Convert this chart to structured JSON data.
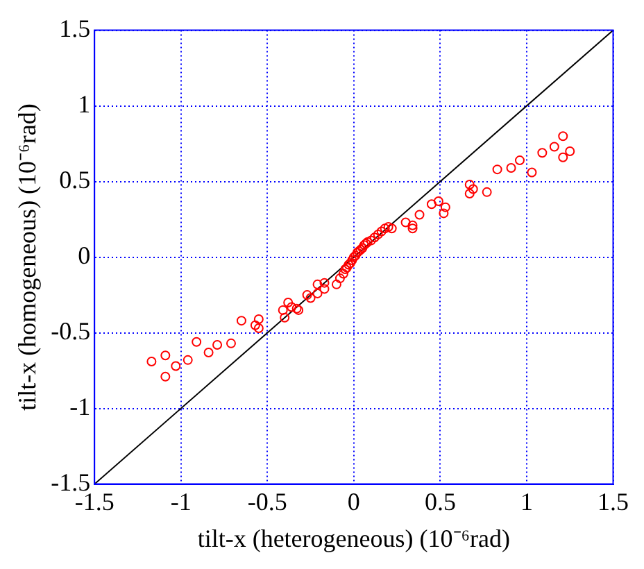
{
  "chart_data": {
    "type": "scatter",
    "xlabel": "tilt-x (heterogeneous) (10⁻⁶rad)",
    "ylabel": "tilt-x (homogeneous) (10⁻⁶rad)",
    "xlim": [
      -1.5,
      1.5
    ],
    "ylim": [
      -1.5,
      1.5
    ],
    "xticks": [
      -1.5,
      -1,
      -0.5,
      0,
      0.5,
      1,
      1.5
    ],
    "yticks": [
      -1.5,
      -1,
      -0.5,
      0,
      0.5,
      1,
      1.5
    ],
    "grid": true,
    "legend": false,
    "series": [
      {
        "type": "scatter",
        "color": "#ff0000",
        "marker": "circle",
        "x": [
          -1.17,
          -1.09,
          -1.09,
          -1.03,
          -0.96,
          -0.91,
          -0.84,
          -0.79,
          -0.71,
          -0.65,
          -0.55,
          -0.57,
          -0.55,
          -0.41,
          -0.4,
          -0.32,
          -0.38,
          -0.36,
          -0.33,
          -0.25,
          -0.27,
          -0.21,
          -0.21,
          -0.17,
          -0.17,
          -0.1,
          -0.08,
          -0.06,
          -0.05,
          -0.04,
          -0.03,
          -0.02,
          -0.01,
          0,
          0.01,
          0.02,
          0.03,
          0.04,
          0.05,
          0.06,
          0.07,
          0.08,
          0.1,
          0.12,
          0.14,
          0.16,
          0.18,
          0.2,
          0.22,
          0.3,
          0.34,
          0.38,
          0.34,
          0.45,
          0.53,
          0.52,
          0.49,
          0.67,
          0.69,
          0.67,
          0.77,
          0.83,
          0.91,
          0.96,
          1.03,
          1.09,
          1.16,
          1.21,
          1.21,
          1.25
        ],
        "values": [
          -0.69,
          -0.65,
          -0.79,
          -0.72,
          -0.68,
          -0.56,
          -0.63,
          -0.58,
          -0.57,
          -0.42,
          -0.41,
          -0.45,
          -0.47,
          -0.35,
          -0.4,
          -0.35,
          -0.3,
          -0.33,
          -0.34,
          -0.27,
          -0.25,
          -0.24,
          -0.18,
          -0.17,
          -0.21,
          -0.18,
          -0.14,
          -0.11,
          -0.08,
          -0.07,
          -0.05,
          -0.04,
          -0.02,
          0,
          0.01,
          0.03,
          0.04,
          0.05,
          0.06,
          0.08,
          0.09,
          0.1,
          0.11,
          0.13,
          0.15,
          0.17,
          0.19,
          0.2,
          0.19,
          0.23,
          0.19,
          0.28,
          0.21,
          0.35,
          0.33,
          0.29,
          0.37,
          0.48,
          0.45,
          0.42,
          0.43,
          0.58,
          0.59,
          0.64,
          0.56,
          0.69,
          0.73,
          0.8,
          0.66,
          0.7
        ]
      },
      {
        "type": "line",
        "color": "#000000",
        "marker": "none",
        "x": [
          -1.5,
          1.5
        ],
        "values": [
          -1.5,
          1.5
        ]
      }
    ]
  }
}
